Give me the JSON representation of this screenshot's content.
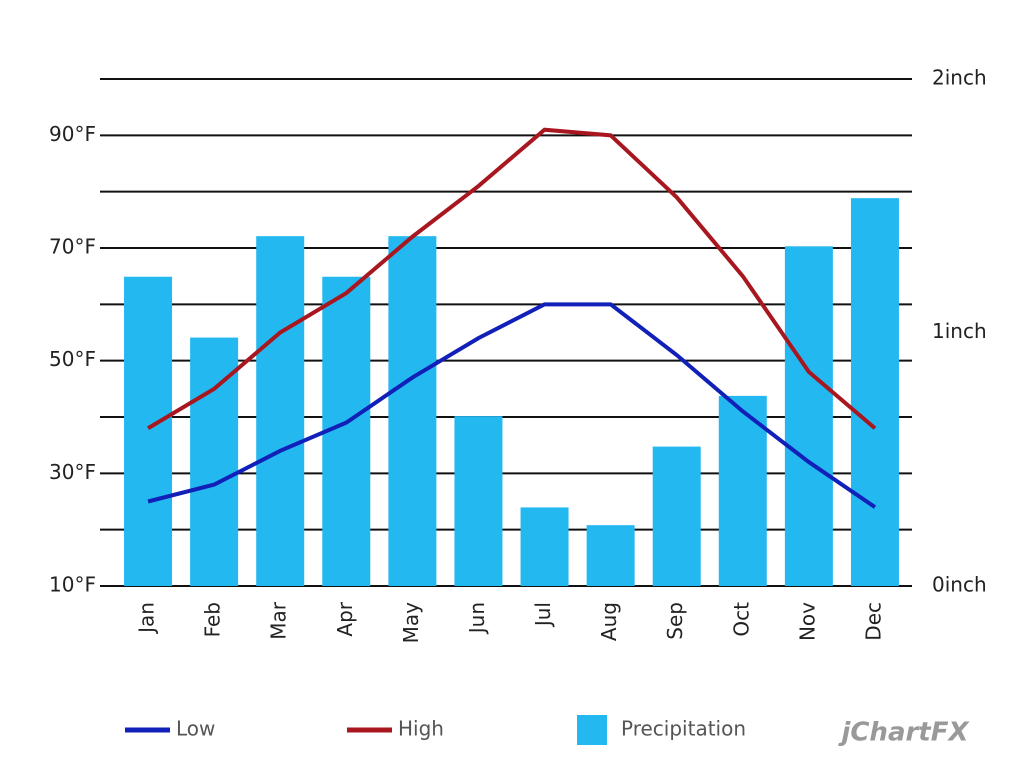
{
  "chart_data": {
    "type": "bar-line",
    "categories": [
      "Jan",
      "Feb",
      "Mar",
      "Apr",
      "May",
      "Jun",
      "Jul",
      "Aug",
      "Sep",
      "Oct",
      "Nov",
      "Dec"
    ],
    "series": [
      {
        "name": "Low",
        "type": "line",
        "color": "#1020b8",
        "values": [
          25,
          28,
          34,
          39,
          47,
          54,
          60,
          60,
          51,
          41,
          32,
          24
        ]
      },
      {
        "name": "High",
        "type": "line",
        "color": "#a8171f",
        "values": [
          38,
          45,
          55,
          62,
          72,
          81,
          91,
          90,
          79,
          65,
          48,
          38
        ]
      },
      {
        "name": "Precipitation",
        "type": "bar",
        "axis": "y2",
        "color": "#24b8f0",
        "values": [
          1.22,
          0.98,
          1.38,
          1.22,
          1.38,
          0.67,
          0.31,
          0.24,
          0.55,
          0.75,
          1.34,
          1.53
        ]
      }
    ],
    "ylim": [
      10,
      100
    ],
    "yticks": [
      {
        "value": 10,
        "label": "10°F"
      },
      {
        "value": 30,
        "label": "30°F"
      },
      {
        "value": 50,
        "label": "50°F"
      },
      {
        "value": 70,
        "label": "70°F"
      },
      {
        "value": 90,
        "label": "90°F"
      }
    ],
    "minor_yticks": [
      20,
      40,
      60,
      80,
      100
    ],
    "y2lim": [
      0,
      2
    ],
    "y2ticks": [
      {
        "value": 0,
        "label": "0inch"
      },
      {
        "value": 1,
        "label": "1inch"
      },
      {
        "value": 2,
        "label": "2inch"
      }
    ],
    "grid": true,
    "legend": "bottom",
    "watermark": "jChartFX"
  }
}
